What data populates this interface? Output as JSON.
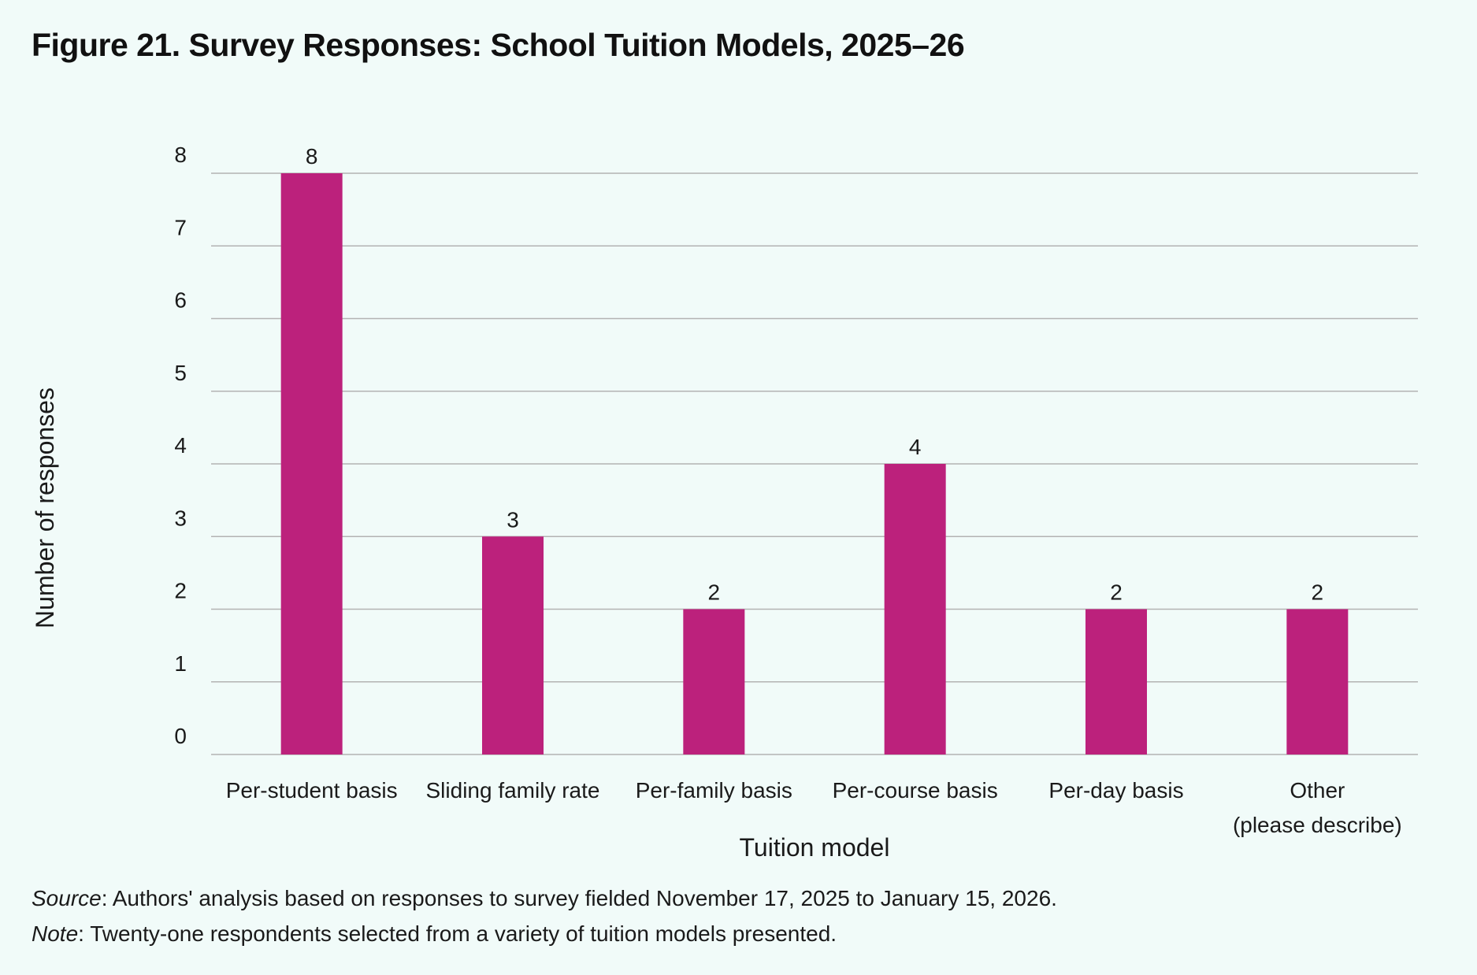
{
  "title": "Figure 21. Survey Responses: School Tuition Models, 2025–26",
  "colors": {
    "background": "#f1fbf9",
    "bar": "#bc217c",
    "grid": "#b3b3b3"
  },
  "chart_data": {
    "type": "bar",
    "categories": [
      [
        "Per-student basis"
      ],
      [
        "Sliding family rate"
      ],
      [
        "Per-family basis"
      ],
      [
        "Per-course basis"
      ],
      [
        "Per-day basis"
      ],
      [
        "Other",
        "(please describe)"
      ]
    ],
    "values": [
      8,
      3,
      2,
      4,
      2,
      2
    ],
    "data_labels": [
      "8",
      "3",
      "2",
      "4",
      "2",
      "2"
    ],
    "ylim": [
      0,
      8
    ],
    "yticks": [
      0,
      1,
      2,
      3,
      4,
      5,
      6,
      7,
      8
    ],
    "xlabel": "Tuition model",
    "ylabel": "Number of responses",
    "grid": true,
    "legend": "none"
  },
  "footnotes": {
    "source_label": "Source",
    "source_text": ": Authors' analysis based on responses to survey fielded November 17, 2025 to January 15, 2026.",
    "note_label": "Note",
    "note_text": ": Twenty-one respondents selected from a variety of tuition models presented."
  }
}
